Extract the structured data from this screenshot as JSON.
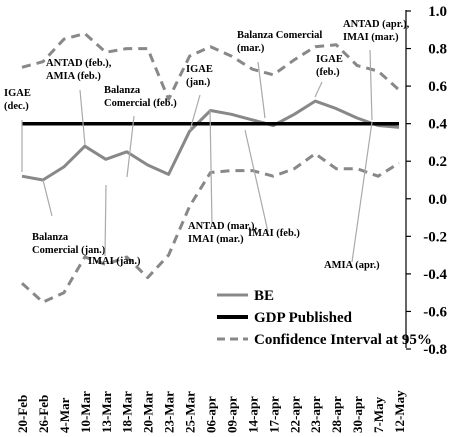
{
  "chart_data": {
    "type": "line",
    "categories": [
      "20-Feb",
      "26-Feb",
      "4-Mar",
      "10-Mar",
      "13-Mar",
      "18-Mar",
      "20-Mar",
      "23-Mar",
      "25-Mar",
      "06-apr",
      "09-apr",
      "14-apr",
      "17-apr",
      "22-apr",
      "23-apr",
      "28-apr",
      "30-apr",
      "7-May",
      "12-May"
    ],
    "ylim": [
      -0.8,
      1.0
    ],
    "yticks": [
      "1.0",
      "0.8",
      "0.6",
      "0.4",
      "0.2",
      "0.0",
      "-0.2",
      "-0.4",
      "-0.6",
      "-0.8"
    ],
    "ytick_values": [
      1.0,
      0.8,
      0.6,
      0.4,
      0.2,
      0.0,
      -0.2,
      -0.4,
      -0.6,
      -0.8
    ],
    "series": [
      {
        "name": "BE",
        "style": "solid",
        "color": "#888888",
        "values": [
          0.12,
          0.1,
          0.17,
          0.28,
          0.21,
          0.25,
          0.18,
          0.13,
          0.36,
          0.47,
          0.45,
          0.42,
          0.39,
          0.45,
          0.52,
          0.48,
          0.43,
          0.39,
          0.38
        ]
      },
      {
        "name": "GDP Published",
        "style": "solid-bold",
        "color": "#000000",
        "values": [
          0.4,
          0.4,
          0.4,
          0.4,
          0.4,
          0.4,
          0.4,
          0.4,
          0.4,
          0.4,
          0.4,
          0.4,
          0.4,
          0.4,
          0.4,
          0.4,
          0.4,
          0.4,
          0.4
        ]
      },
      {
        "name": "Confidence Interval at 95%",
        "style": "dashed",
        "color": "#888888",
        "values": [
          0.7,
          0.73,
          0.85,
          0.88,
          0.78,
          0.8,
          0.8,
          0.53,
          0.76,
          0.81,
          0.76,
          0.69,
          0.66,
          0.74,
          0.81,
          0.82,
          0.71,
          0.68,
          0.58
        ]
      },
      {
        "name": "Confidence Interval at 95%",
        "style": "dashed",
        "color": "#888888",
        "legend": false,
        "values": [
          -0.45,
          -0.55,
          -0.5,
          -0.31,
          -0.35,
          -0.31,
          -0.42,
          -0.3,
          -0.04,
          0.14,
          0.15,
          0.15,
          0.12,
          0.16,
          0.24,
          0.16,
          0.16,
          0.12,
          0.19
        ]
      }
    ],
    "annotations": [
      {
        "lines": [
          "IGAE",
          "(dec.)"
        ],
        "x_index": 0,
        "y": 0.12,
        "side": "above"
      },
      {
        "lines": [
          "Balanza",
          "Comercial (jan.)"
        ],
        "x_index": 1,
        "y": 0.1,
        "side": "below"
      },
      {
        "lines": [
          "ANTAD (feb.),",
          "AMIA (feb.)"
        ],
        "x_index": 3,
        "y": 0.28,
        "side": "above"
      },
      {
        "lines": [
          "IMAI (jan.)"
        ],
        "x_index": 4,
        "y": 0.21,
        "side": "below"
      },
      {
        "lines": [
          "Balanza",
          "Comercial (feb.)"
        ],
        "x_index": 5,
        "y": 0.25,
        "side": "above"
      },
      {
        "lines": [
          "IGAE",
          "(jan.)"
        ],
        "x_index": 8,
        "y": 0.36,
        "side": "above"
      },
      {
        "lines": [
          "ANTAD (mar.),",
          "IMAI (mar.)"
        ],
        "x_index": 9,
        "y": 0.47,
        "side": "below"
      },
      {
        "lines": [
          "Balanza Comercial",
          "(mar.)"
        ],
        "x_index": 12,
        "y": 0.39,
        "side": "above"
      },
      {
        "lines": [
          "IMAI (feb.)"
        ],
        "x_index": 12,
        "y": 0.39,
        "side": "below"
      },
      {
        "lines": [
          "IGAE",
          "(feb.)"
        ],
        "x_index": 14,
        "y": 0.52,
        "side": "above"
      },
      {
        "lines": [
          "ANTAD (apr.),",
          "IMAI (mar.)"
        ],
        "x_index": 17,
        "y": 0.39,
        "side": "above"
      },
      {
        "lines": [
          "AMIA (apr.)"
        ],
        "x_index": 16,
        "y": 0.43,
        "side": "below"
      }
    ],
    "legend": {
      "position": "bottom-right"
    },
    "grid": false
  }
}
